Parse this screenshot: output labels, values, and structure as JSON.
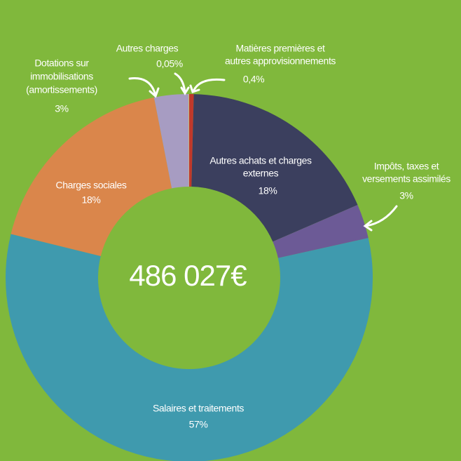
{
  "chart_data": {
    "type": "donut",
    "center_label": "486 027€",
    "categories": [
      [
        "Matières premières et",
        "autres  approvisionnements"
      ],
      [
        "Autres achats et charges",
        "externes"
      ],
      [
        "Impôts, taxes et",
        "versements assimilés"
      ],
      [
        "Salaires et traitements"
      ],
      [
        "Charges sociales"
      ],
      [
        "Dotations sur",
        "immobilisations",
        "(amortissements)"
      ],
      [
        "Autres charges"
      ]
    ],
    "values": [
      0.4,
      18,
      3,
      57,
      18,
      3,
      0.05
    ],
    "value_labels": [
      "0,4%",
      "18%",
      "3%",
      "57%",
      "18%",
      "3%",
      "0,05%"
    ],
    "colors": [
      "#c0392b",
      "#3b3f5e",
      "#6c5a96",
      "#3f9aae",
      "#da864b",
      "#a79cc2",
      "#d8c07a"
    ]
  }
}
